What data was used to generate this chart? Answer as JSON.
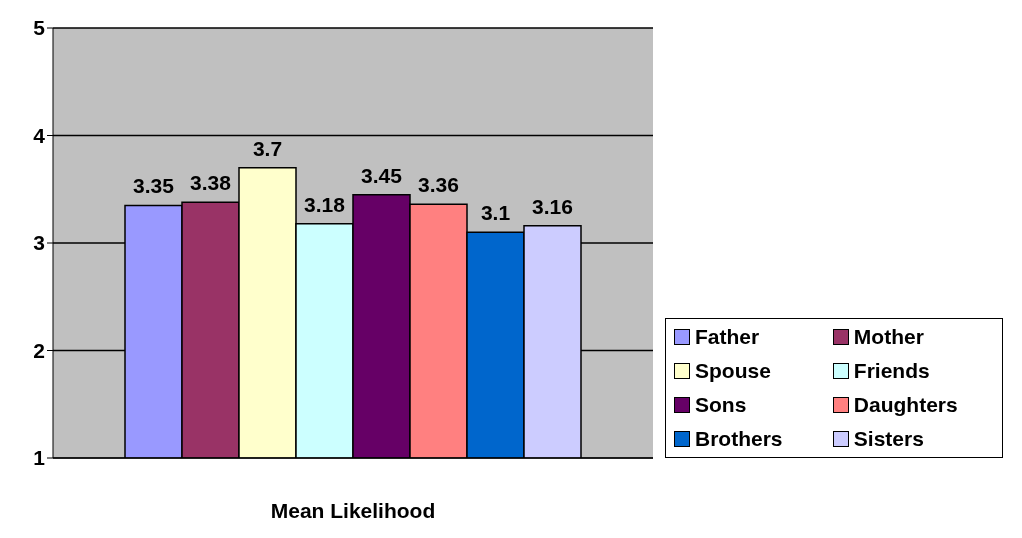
{
  "chart_data": {
    "type": "bar",
    "xlabel": "Mean Likelihood",
    "categories": [
      null
    ],
    "series": [
      {
        "name": "Father",
        "color": "#9999ff",
        "values": [
          3.35
        ]
      },
      {
        "name": "Mother",
        "color": "#993366",
        "values": [
          3.38
        ]
      },
      {
        "name": "Spouse",
        "color": "#ffffcc",
        "values": [
          3.7
        ]
      },
      {
        "name": "Friends",
        "color": "#ccffff",
        "values": [
          3.18
        ]
      },
      {
        "name": "Sons",
        "color": "#660066",
        "values": [
          3.45
        ]
      },
      {
        "name": "Daughters",
        "color": "#ff8080",
        "values": [
          3.36
        ]
      },
      {
        "name": "Brothers",
        "color": "#0066cc",
        "values": [
          3.1
        ]
      },
      {
        "name": "Sisters",
        "color": "#ccccff",
        "values": [
          3.16
        ]
      }
    ],
    "ylim": [
      1,
      5
    ],
    "yticks": [
      1,
      2,
      3,
      4,
      5
    ],
    "grid": "y",
    "legend": "bottom right",
    "data_labels": true
  }
}
